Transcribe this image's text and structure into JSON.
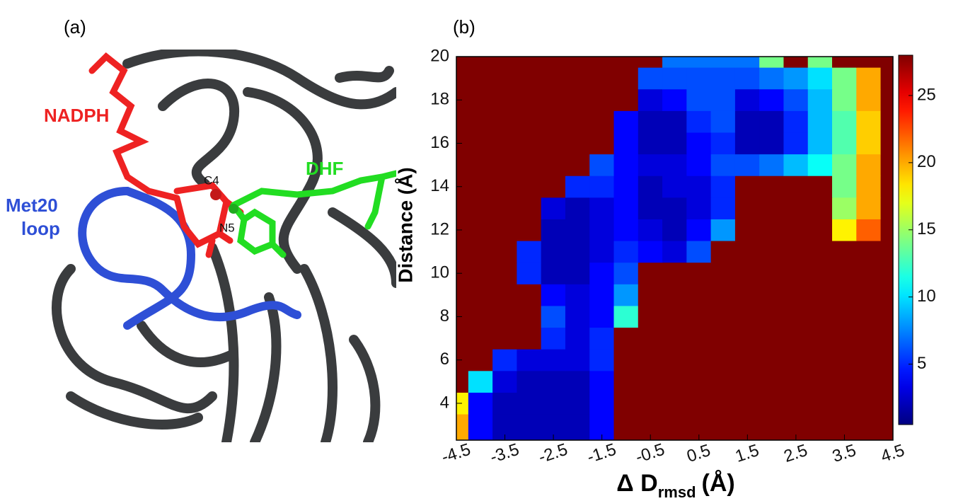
{
  "panel_a": {
    "label": "(a)",
    "annotations": {
      "nadph": "NADPH",
      "dhf": "DHF",
      "met20": "Met20",
      "loop": "loop",
      "c4": "C4",
      "n5": "N5"
    }
  },
  "chart_data": {
    "type": "contour",
    "panel_label": "(b)",
    "colormap": "jet",
    "ylabel": "Distance (Å)",
    "xlabel": [
      "Δ D",
      "rmsd",
      "(Å)"
    ],
    "x": [
      -4.5,
      -4,
      -3.5,
      -3,
      -2.5,
      -2,
      -1.5,
      -1,
      -0.5,
      0,
      0.5,
      1,
      1.5,
      2,
      2.5,
      3,
      3.5,
      4,
      4.5
    ],
    "y": [
      3,
      4,
      5,
      6,
      7,
      8,
      9,
      10,
      11,
      12,
      13,
      14,
      15,
      16,
      17,
      18,
      19,
      20
    ],
    "z": [
      [
        20,
        4,
        2,
        2,
        2,
        2,
        4,
        28,
        28,
        28,
        28,
        28,
        28,
        28,
        28,
        28,
        28,
        28,
        28
      ],
      [
        18,
        4,
        2,
        2,
        2,
        2,
        4,
        28,
        28,
        28,
        28,
        28,
        28,
        28,
        28,
        28,
        28,
        28,
        28
      ],
      [
        28,
        10,
        3,
        2,
        2,
        2,
        4,
        28,
        28,
        28,
        28,
        28,
        28,
        28,
        28,
        28,
        28,
        28,
        28
      ],
      [
        28,
        28,
        5,
        3,
        3,
        3,
        5,
        28,
        28,
        28,
        28,
        28,
        28,
        28,
        28,
        28,
        28,
        28,
        28
      ],
      [
        28,
        28,
        28,
        28,
        5,
        3,
        5,
        28,
        28,
        28,
        28,
        28,
        28,
        28,
        28,
        28,
        28,
        28,
        28
      ],
      [
        28,
        28,
        28,
        28,
        6,
        3,
        4,
        12,
        28,
        28,
        28,
        28,
        28,
        28,
        28,
        28,
        28,
        28,
        28
      ],
      [
        28,
        28,
        28,
        28,
        4,
        3,
        4,
        8,
        28,
        28,
        28,
        28,
        28,
        28,
        28,
        28,
        28,
        28,
        28
      ],
      [
        28,
        28,
        28,
        5,
        2,
        2,
        4,
        6,
        28,
        28,
        28,
        28,
        28,
        28,
        28,
        28,
        28,
        28,
        28
      ],
      [
        28,
        28,
        28,
        5,
        2,
        2,
        3,
        5,
        4,
        3,
        6,
        28,
        28,
        28,
        28,
        28,
        28,
        28,
        28
      ],
      [
        28,
        28,
        28,
        28,
        2,
        2,
        3,
        4,
        3,
        2,
        4,
        8,
        28,
        28,
        28,
        28,
        18,
        22,
        28
      ],
      [
        28,
        28,
        28,
        28,
        3,
        2,
        3,
        4,
        2,
        2,
        3,
        5,
        28,
        28,
        28,
        28,
        15,
        20,
        28
      ],
      [
        28,
        28,
        28,
        28,
        28,
        5,
        5,
        4,
        2,
        3,
        3,
        5,
        28,
        28,
        28,
        28,
        14,
        20,
        28
      ],
      [
        28,
        28,
        28,
        28,
        28,
        28,
        6,
        4,
        3,
        3,
        4,
        6,
        6,
        7,
        9,
        11,
        14,
        20,
        28
      ],
      [
        28,
        28,
        28,
        28,
        28,
        28,
        28,
        4,
        2,
        2,
        4,
        5,
        2,
        2,
        5,
        9,
        13,
        19,
        28
      ],
      [
        28,
        28,
        28,
        28,
        28,
        28,
        28,
        4,
        2,
        2,
        5,
        6,
        2,
        2,
        5,
        9,
        13,
        19,
        28
      ],
      [
        28,
        28,
        28,
        28,
        28,
        28,
        28,
        28,
        3,
        4,
        6,
        6,
        3,
        4,
        6,
        9,
        14,
        20,
        28
      ],
      [
        28,
        28,
        28,
        28,
        28,
        28,
        28,
        28,
        6,
        6,
        6,
        6,
        6,
        7,
        8,
        10,
        14,
        20,
        28
      ],
      [
        28,
        28,
        28,
        28,
        28,
        28,
        28,
        28,
        28,
        7,
        7,
        7,
        7,
        14,
        28,
        14,
        28,
        28,
        28
      ]
    ],
    "xlim": [
      -4.5,
      4.5
    ],
    "ylim": [
      2.3,
      20
    ],
    "xticks": [
      -4.5,
      -3.5,
      -2.5,
      -1.5,
      -0.5,
      0.5,
      1.5,
      2.5,
      3.5,
      4.5
    ],
    "yticks": [
      4,
      6,
      8,
      10,
      12,
      14,
      16,
      18,
      20
    ],
    "colorbar": {
      "lim": [
        0.5,
        28
      ],
      "ticks": [
        5,
        10,
        15,
        20,
        25
      ]
    }
  }
}
